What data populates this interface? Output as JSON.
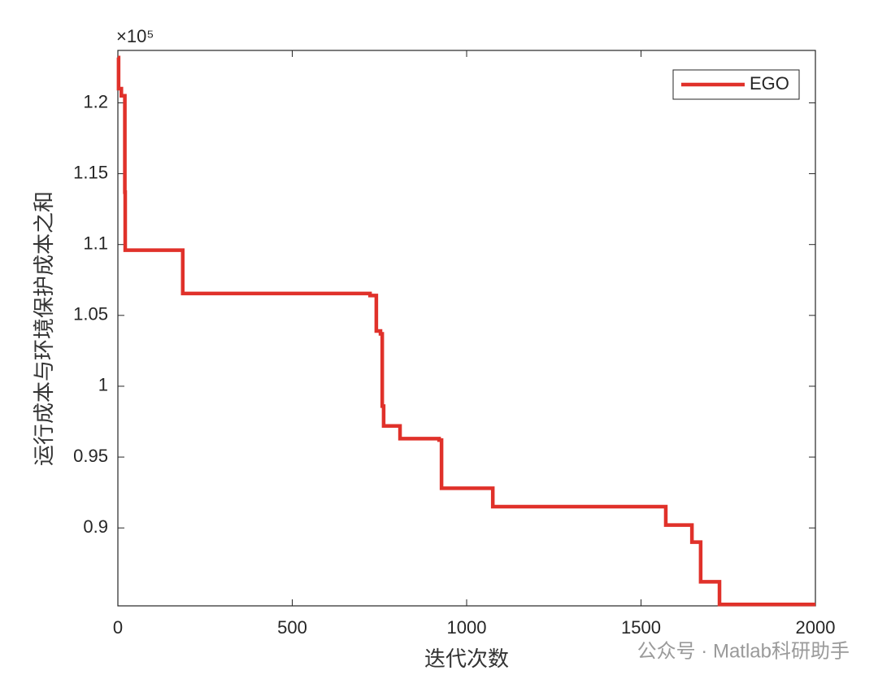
{
  "chart_data": {
    "type": "line",
    "xlabel": "迭代次数",
    "ylabel": "运行成本与环境保护成本之和",
    "y_exponent": "×10⁵",
    "watermark": "公众号 · Matlab科研助手",
    "x": [
      0,
      2,
      2,
      10,
      10,
      20,
      20,
      21,
      21,
      186,
      186,
      723,
      723,
      741,
      741,
      753,
      753,
      758,
      758,
      762,
      762,
      809,
      809,
      921,
      921,
      928,
      928,
      1075,
      1075,
      1571,
      1571,
      1646,
      1646,
      1671,
      1671,
      1725,
      1725,
      2000
    ],
    "series": [
      {
        "name": "EGO",
        "color": "#e0312a",
        "values": [
          1.232,
          1.232,
          1.21,
          1.21,
          1.205,
          1.205,
          1.137,
          1.137,
          1.096,
          1.096,
          1.0655,
          1.0655,
          1.064,
          1.064,
          1.039,
          1.039,
          1.037,
          1.037,
          0.986,
          0.986,
          0.972,
          0.972,
          0.963,
          0.963,
          0.962,
          0.962,
          0.928,
          0.928,
          0.915,
          0.915,
          0.902,
          0.902,
          0.89,
          0.89,
          0.862,
          0.862,
          0.846,
          0.846
        ]
      }
    ],
    "xlim": [
      0,
      2000
    ],
    "xticks": [
      0,
      500,
      1000,
      1500,
      2000
    ],
    "ylim": [
      0.845,
      1.237
    ],
    "yticks": [
      0.9,
      0.95,
      1,
      1.05,
      1.1,
      1.15,
      1.2
    ],
    "grid": false,
    "legend": "top-right"
  }
}
